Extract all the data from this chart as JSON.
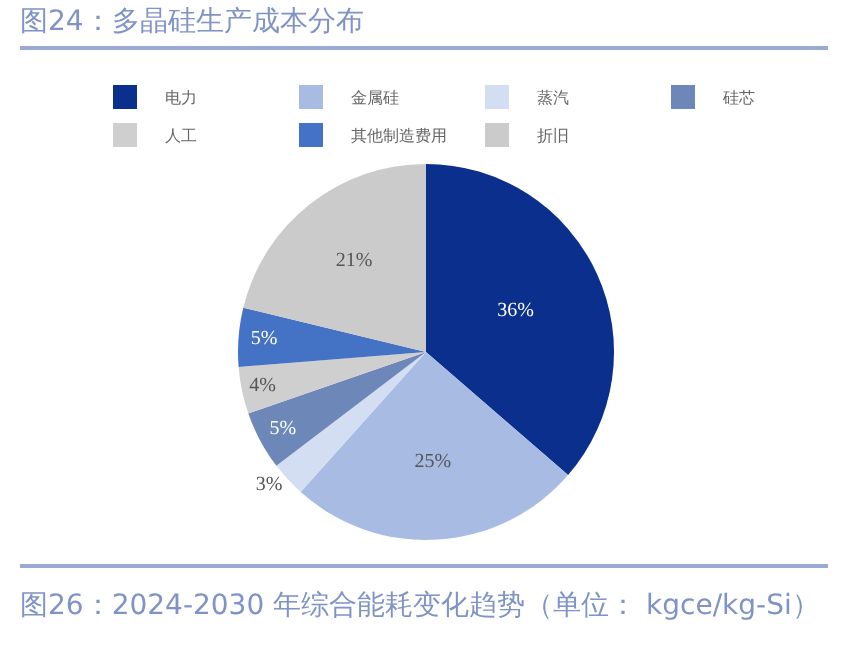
{
  "chart_data": {
    "type": "pie",
    "title": "图24：多晶硅生产成本分布",
    "categories": [
      "电力",
      "金属硅",
      "蒸汽",
      "硅芯",
      "人工",
      "其他制造费用",
      "折旧"
    ],
    "values": [
      36,
      25,
      3,
      5,
      4,
      5,
      21
    ],
    "value_labels": [
      "36%",
      "25%",
      "3%",
      "5%",
      "4%",
      "5%",
      "21%"
    ],
    "colors": [
      "#0a2f8c",
      "#a8bce3",
      "#d3def2",
      "#6d88b8",
      "#cfcfcf",
      "#4472c4",
      "#cbcbcb"
    ],
    "legend": "top",
    "annotations": [
      "图26：2024-2030  年综合能耗变化趋势（单位：  kgce/kg-Si）"
    ]
  }
}
